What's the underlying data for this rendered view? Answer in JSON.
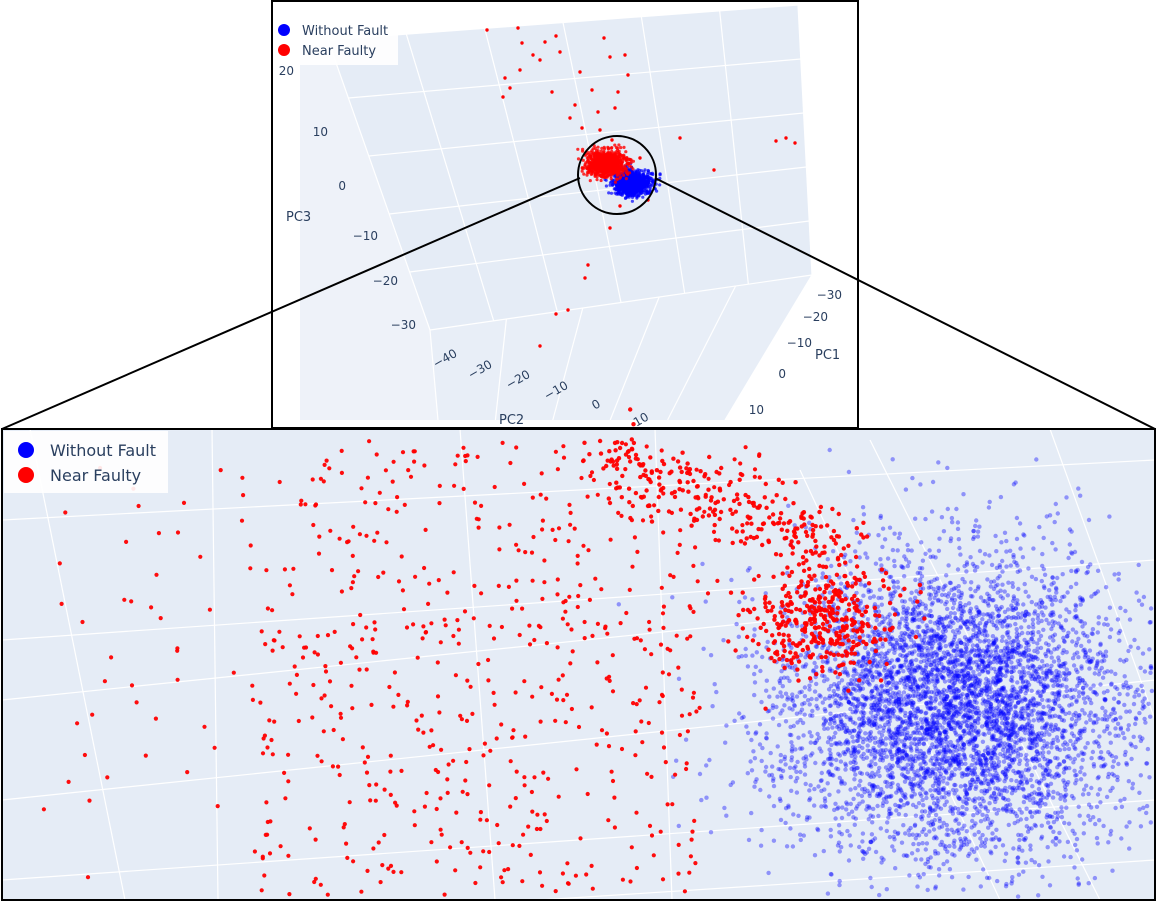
{
  "colors": {
    "without_fault": "#0000ff",
    "near_faulty": "#ff0000",
    "plot_bg": "#e5ecf6",
    "grid": "#ffffff",
    "text": "#2a3f5f"
  },
  "chart_data": [
    {
      "type": "scatter",
      "panel": "overview-3d",
      "legend": [
        "Without Fault",
        "Near Faulty"
      ],
      "axes": {
        "PC1": {
          "label": "PC1",
          "ticks": [
            "−30",
            "−20",
            "−10",
            "0",
            "10"
          ]
        },
        "PC2": {
          "label": "PC2",
          "ticks": [
            "−40",
            "−30",
            "−20",
            "−10",
            "0",
            "10"
          ]
        },
        "PC3": {
          "label": "PC3",
          "ticks": [
            "20",
            "10",
            "0",
            "−10",
            "−20",
            "−30"
          ]
        }
      },
      "series": [
        {
          "name": "Without Fault",
          "color": "#0000ff",
          "pc1": [
            2,
            6
          ],
          "pc2": [
            3,
            7
          ],
          "pc3": [
            -1,
            3
          ]
        },
        {
          "name": "Near Faulty",
          "color": "#ff0000",
          "pc1": [
            -5,
            0
          ],
          "pc2": [
            -2,
            2
          ],
          "pc3": [
            1,
            5
          ]
        }
      ],
      "grid": true,
      "legend_position": "top-left"
    },
    {
      "type": "scatter",
      "panel": "zoomed-detail",
      "legend": [
        "Without Fault",
        "Near Faulty"
      ],
      "series": [
        {
          "name": "Without Fault",
          "color": "#0000ff"
        },
        {
          "name": "Near Faulty",
          "color": "#ff0000"
        }
      ],
      "grid": true,
      "legend_position": "top-left"
    }
  ]
}
